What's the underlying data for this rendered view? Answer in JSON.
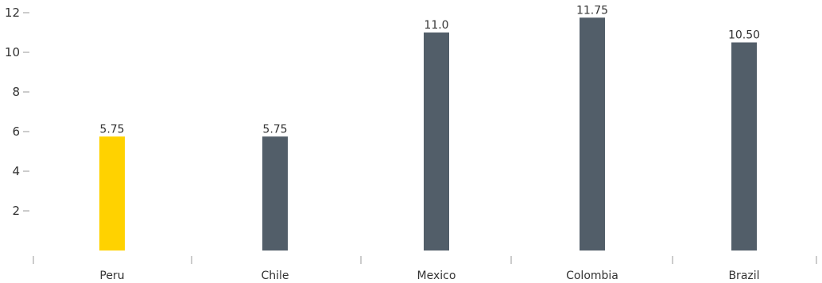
{
  "chart_data": {
    "type": "bar",
    "title": "",
    "xlabel": "",
    "ylabel": "",
    "categories": [
      "Peru",
      "Chile",
      "Mexico",
      "Colombia",
      "Brazil"
    ],
    "values": [
      5.75,
      5.75,
      11.0,
      11.75,
      10.5
    ],
    "data_labels": [
      "5.75",
      "5.75",
      "11.0",
      "11.75",
      "10.50"
    ],
    "ylim": [
      0,
      12
    ],
    "yticks": [
      2,
      4,
      6,
      8,
      10,
      12
    ],
    "grid": false,
    "legend": "none",
    "colors": {
      "highlight": "#FFD200",
      "default": "#525E69"
    },
    "highlight_index": 0
  }
}
